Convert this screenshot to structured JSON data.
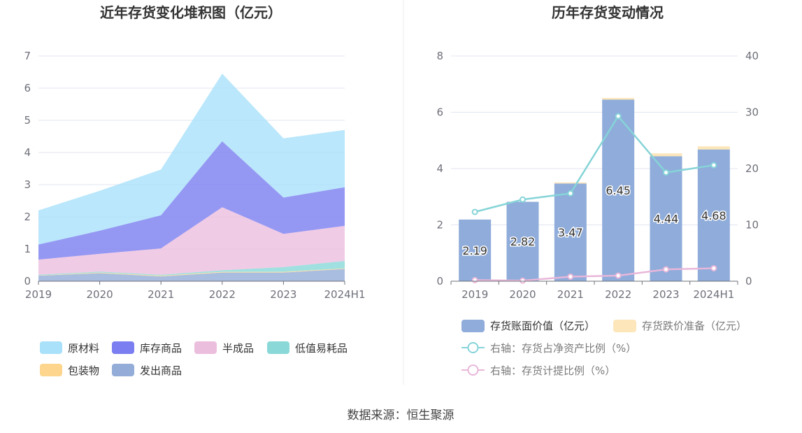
{
  "source": "数据来源：恒生聚源",
  "colors": {
    "原材料": "#a9e1fa",
    "库存商品": "#7b7ef0",
    "半成品": "#ecbede",
    "低值易耗品": "#8ad8d8",
    "包装物": "#fdd58c",
    "发出商品": "#93add8",
    "bar_value": "#8facda",
    "bar_reserve": "#fde6b9",
    "line_ratio": "#86d4d8",
    "line_provision": "#e8b7da"
  },
  "chart_data": [
    {
      "type": "area",
      "title": "近年存货变化堆积图（亿元）",
      "x": [
        "2019",
        "2020",
        "2021",
        "2022",
        "2023",
        "2024H1"
      ],
      "ylim": [
        0,
        7
      ],
      "yticks": [
        0,
        1,
        2,
        3,
        4,
        5,
        6,
        7
      ],
      "stacked": true,
      "series": [
        {
          "name": "发出商品",
          "values": [
            0.17,
            0.25,
            0.15,
            0.27,
            0.27,
            0.38
          ]
        },
        {
          "name": "包装物",
          "values": [
            0.01,
            0.02,
            0.02,
            0.02,
            0.02,
            0.02
          ]
        },
        {
          "name": "低值易耗品",
          "values": [
            0.02,
            0.03,
            0.03,
            0.05,
            0.15,
            0.23
          ]
        },
        {
          "name": "半成品",
          "values": [
            0.47,
            0.55,
            0.82,
            1.96,
            1.03,
            1.09
          ]
        },
        {
          "name": "库存商品",
          "values": [
            0.47,
            0.72,
            1.03,
            2.05,
            1.13,
            1.2
          ]
        },
        {
          "name": "原材料",
          "values": [
            1.06,
            1.24,
            1.42,
            2.1,
            1.84,
            1.78
          ]
        }
      ],
      "legend": [
        "原材料",
        "库存商品",
        "半成品",
        "低值易耗品",
        "包装物",
        "发出商品"
      ],
      "legend_position": "bottom"
    },
    {
      "type": "bar",
      "title": "历年存货变动情况",
      "categories": [
        "2019",
        "2020",
        "2021",
        "2022",
        "2023",
        "2024H1"
      ],
      "ylim": [
        0,
        8
      ],
      "yticks": [
        0,
        2,
        4,
        6,
        8
      ],
      "y2lim": [
        0,
        40
      ],
      "y2ticks": [
        0,
        10,
        20,
        30,
        40
      ],
      "stacked": true,
      "series": [
        {
          "name": "存货账面价值（亿元）",
          "type": "bar",
          "values": [
            2.19,
            2.82,
            3.47,
            6.45,
            4.44,
            4.68
          ],
          "labels": [
            "2.19",
            "2.82",
            "3.47",
            "6.45",
            "4.44",
            "4.68"
          ]
        },
        {
          "name": "存货跌价准备（亿元）",
          "type": "bar",
          "values": [
            0.0,
            0.0,
            0.04,
            0.06,
            0.1,
            0.11
          ]
        },
        {
          "name": "右轴：存货占净资产比例（%）",
          "type": "line",
          "axis": "right",
          "values": [
            12.3,
            14.5,
            15.6,
            29.3,
            19.3,
            20.6
          ]
        },
        {
          "name": "右轴：存货计提比例（%）",
          "type": "line",
          "axis": "right",
          "values": [
            0.2,
            0.1,
            0.8,
            1.0,
            2.1,
            2.3
          ]
        }
      ],
      "legend_position": "bottom"
    }
  ]
}
